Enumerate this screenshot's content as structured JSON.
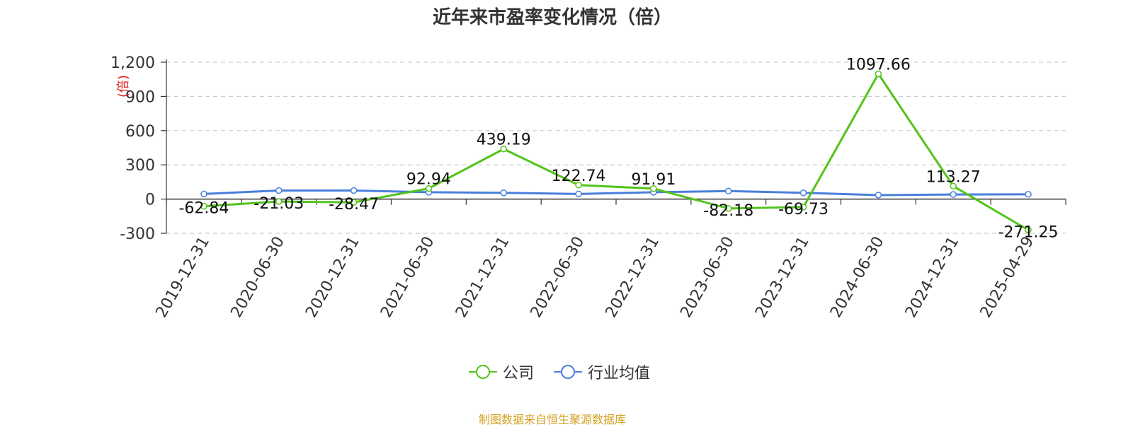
{
  "chart_data": {
    "type": "line",
    "title": "近年来市盈率变化情况（倍）",
    "ylabel": "(倍)",
    "categories": [
      "2019-12-31",
      "2020-06-30",
      "2020-12-31",
      "2021-06-30",
      "2021-12-31",
      "2022-06-30",
      "2022-12-31",
      "2023-06-30",
      "2023-12-31",
      "2024-06-30",
      "2024-12-31",
      "2025-04-29"
    ],
    "ylim": [
      -300,
      1200
    ],
    "yticks": [
      -300,
      0,
      300,
      600,
      900,
      1200
    ],
    "ytick_labels": [
      "-300",
      "0",
      "300",
      "600",
      "900",
      "1,200"
    ],
    "grid": true,
    "legend_position": "bottom-center",
    "series": [
      {
        "name": "公司",
        "color": "#52c41a",
        "values": [
          -62.84,
          -21.03,
          -28.47,
          92.94,
          439.19,
          122.74,
          91.91,
          -82.18,
          -69.73,
          1097.66,
          113.27,
          -271.25
        ],
        "data_labels": [
          "-62.84",
          "-21.03",
          "-28.47",
          "92.94",
          "439.19",
          "122.74",
          "91.91",
          "-82.18",
          "-69.73",
          "1097.66",
          "113.27",
          "-271.25"
        ]
      },
      {
        "name": "行业均值",
        "color": "#4a7fdc",
        "values": [
          45,
          75,
          75,
          60,
          55,
          45,
          60,
          70,
          55,
          35,
          40,
          42
        ]
      }
    ]
  },
  "footer": {
    "source": "制图数据来自恒生聚源数据库"
  }
}
